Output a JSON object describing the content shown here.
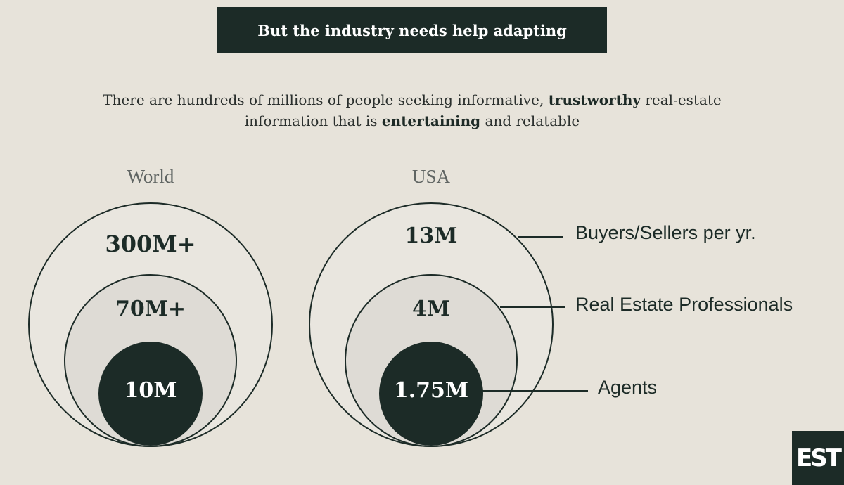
{
  "header": {
    "title": "But the industry needs help adapting"
  },
  "subtitle": {
    "line1_part1": "There are hundreds of millions of people seeking informative, ",
    "line1_bold": "trustworthy",
    "line1_part2": " real-estate",
    "line2_part1": "information that is ",
    "line2_bold": "entertaining",
    "line2_part2": " and relatable"
  },
  "groups": {
    "world": {
      "label": "World",
      "outer": "300M+",
      "middle": "70M+",
      "inner": "10M"
    },
    "usa": {
      "label": "USA",
      "outer": "13M",
      "middle": "4M",
      "inner": "1.75M"
    }
  },
  "legend": {
    "outer": "Buyers/Sellers per yr.",
    "middle": "Real Estate Professionals",
    "inner": "Agents"
  },
  "logo": {
    "text": "EST"
  },
  "colors": {
    "background": "#e7e3da",
    "dark": "#1c2b27",
    "middle_fill": "#dedbd5",
    "outer_fill": "#e9e6df"
  }
}
